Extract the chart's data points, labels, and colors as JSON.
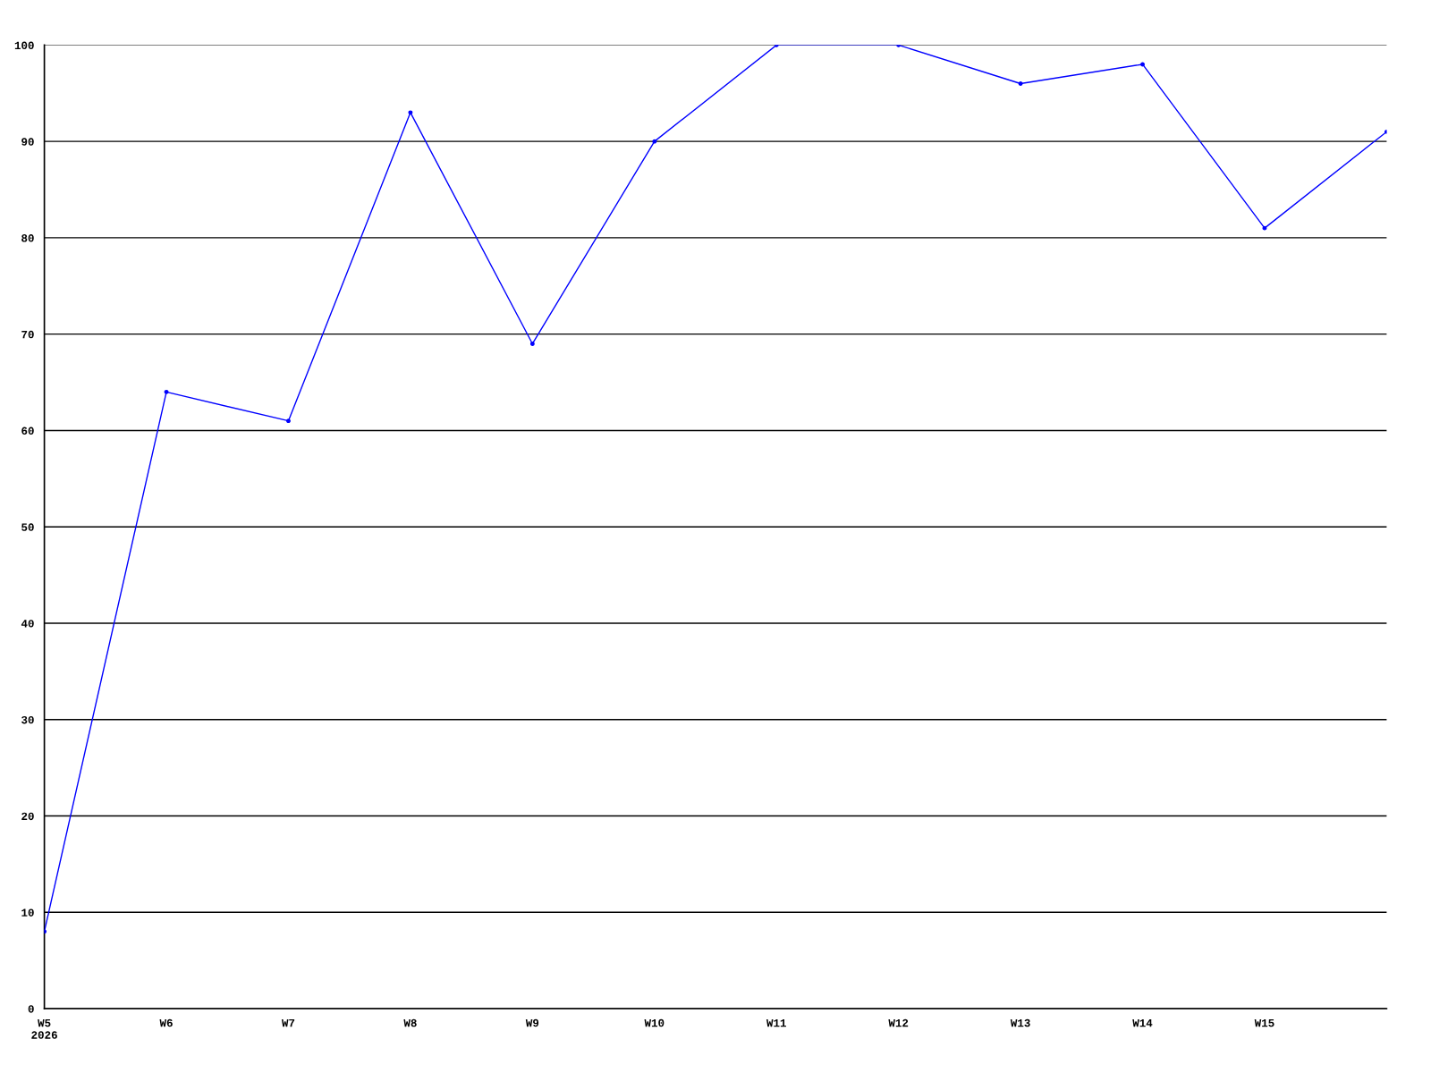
{
  "chart_data": {
    "type": "line",
    "categories": [
      "W5\n2026",
      "W6",
      "W7",
      "W8",
      "W9",
      "W10",
      "W11",
      "W12",
      "W13",
      "W14",
      "W15",
      null
    ],
    "series": [
      {
        "color": "#0000ff",
        "values": [
          8,
          64,
          61,
          93,
          69,
          90,
          100,
          100,
          96,
          98,
          81,
          91
        ]
      }
    ],
    "ylim": [
      0,
      100
    ],
    "yticks": [
      0,
      10,
      20,
      30,
      40,
      50,
      60,
      70,
      80,
      90,
      100
    ],
    "grid": "y",
    "marker": "circle",
    "line_style": "solid"
  }
}
